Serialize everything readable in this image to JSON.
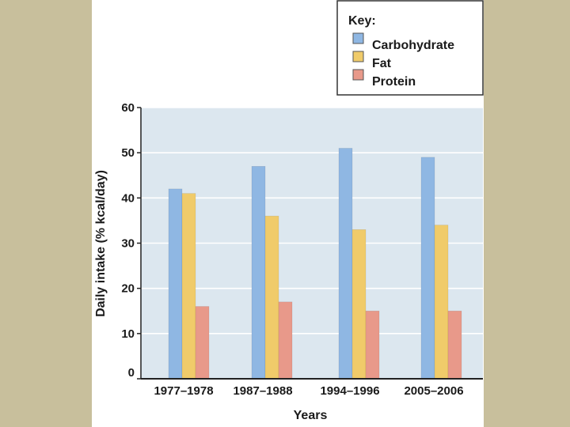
{
  "chart_data": {
    "type": "bar",
    "categories": [
      "1977–1978",
      "1987–1988",
      "1994–1996",
      "2005–2006"
    ],
    "series": [
      {
        "name": "Carbohydrate",
        "values": [
          42,
          47,
          51,
          49
        ],
        "color": "#8fb7e3"
      },
      {
        "name": "Fat",
        "values": [
          41,
          36,
          33,
          34
        ],
        "color": "#f0cb6a"
      },
      {
        "name": "Protein",
        "values": [
          16,
          17,
          15,
          15
        ],
        "color": "#e8998a"
      }
    ],
    "xlabel": "Years",
    "ylabel": "Daily intake (% kcal/day)",
    "ylim": [
      0,
      60
    ],
    "yticks": [
      "0",
      "10",
      "20",
      "30",
      "40",
      "50",
      "60"
    ],
    "grid": true,
    "legend": {
      "title": "Key:",
      "placement": "top-right, outside plot"
    },
    "plot_background": "#dce7ef"
  }
}
